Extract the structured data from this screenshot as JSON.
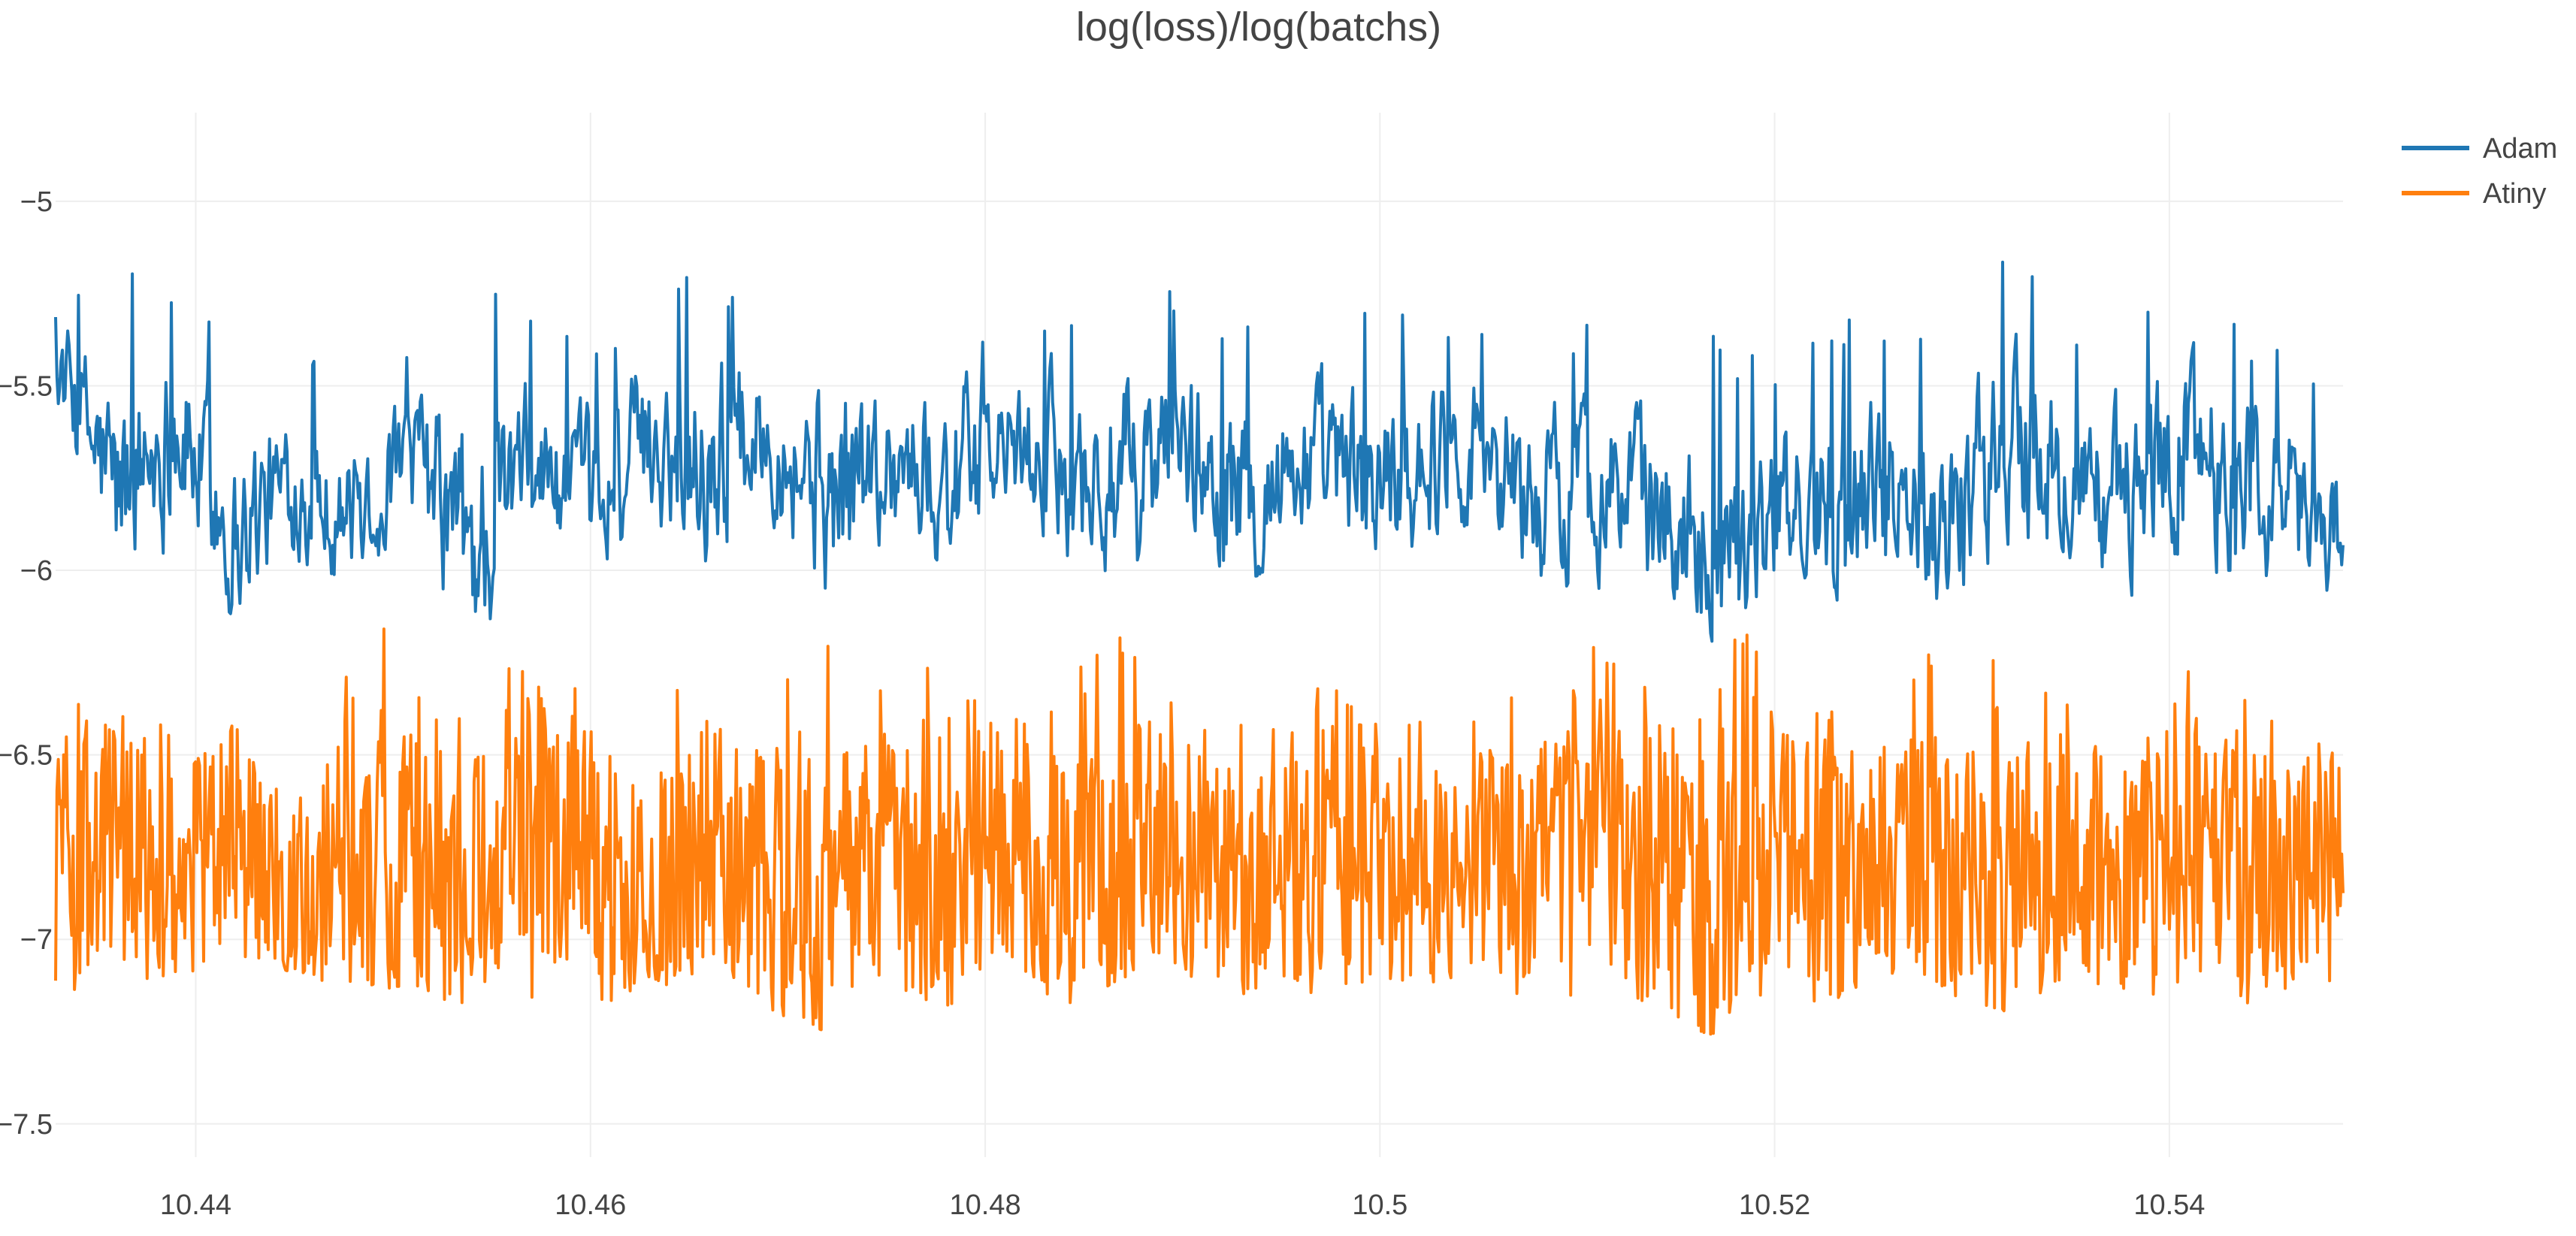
{
  "chart_data": {
    "type": "line",
    "title": "log(loss)/log(batchs)",
    "xlabel": "",
    "ylabel": "",
    "xlim": [
      10.4329,
      10.5488
    ],
    "ylim": [
      -7.59,
      -4.76
    ],
    "x_ticks": [
      10.44,
      10.46,
      10.48,
      10.5,
      10.52,
      10.54
    ],
    "x_tick_labels": [
      "10.44",
      "10.46",
      "10.48",
      "10.5",
      "10.52",
      "10.54"
    ],
    "y_ticks": [
      -5,
      -5.5,
      -6,
      -6.5,
      -7,
      -7.5
    ],
    "y_tick_labels": [
      "−5",
      "−5.5",
      "−6",
      "−6.5",
      "−7",
      "−7.5"
    ],
    "grid": true,
    "legend_position": "top-right",
    "series": [
      {
        "name": "Adam",
        "color": "#1f77b4",
        "x": [
          10.433,
          10.436,
          10.439,
          10.442,
          10.445,
          10.448,
          10.451,
          10.454,
          10.457,
          10.46,
          10.463,
          10.466,
          10.469,
          10.472,
          10.475,
          10.478,
          10.481,
          10.484,
          10.487,
          10.49,
          10.493,
          10.496,
          10.499,
          10.502,
          10.505,
          10.508,
          10.511,
          10.514,
          10.517,
          10.52,
          10.523,
          10.526,
          10.529,
          10.532,
          10.535,
          10.538,
          10.541,
          10.544,
          10.547,
          10.5488
        ],
        "y": [
          -5.45,
          -5.8,
          -5.6,
          -5.9,
          -5.75,
          -5.85,
          -5.7,
          -5.95,
          -5.7,
          -5.85,
          -5.65,
          -5.7,
          -5.6,
          -5.8,
          -5.7,
          -5.75,
          -5.68,
          -5.72,
          -5.8,
          -5.65,
          -5.82,
          -5.7,
          -5.78,
          -5.7,
          -5.65,
          -5.82,
          -5.75,
          -5.85,
          -5.9,
          -5.88,
          -5.8,
          -5.75,
          -5.85,
          -5.65,
          -5.78,
          -5.8,
          -5.65,
          -5.75,
          -5.85,
          -5.9
        ],
        "high": [
          -5.3,
          -5.13,
          -5.23,
          -5.35,
          -5.38,
          -5.45,
          -5.4,
          -5.08,
          -5.3,
          -5.35,
          -5.3,
          -5.13,
          -5.35,
          -5.13,
          -5.38,
          -5.2,
          -5.38,
          -5.3,
          -5.2,
          -5.25,
          -5.3,
          -5.3,
          -5.25,
          -5.3,
          -5.3,
          -5.38,
          -5.3,
          -5.35,
          -5.35,
          -5.45,
          -5.3,
          -5.35,
          -5.35,
          -5.03,
          -5.35,
          -5.4,
          -5.01,
          -5.35,
          -5.42,
          -5.55
        ],
        "low": [
          -5.75,
          -6.1,
          -6.05,
          -6.15,
          -6.0,
          -6.05,
          -6.0,
          -6.22,
          -5.95,
          -6.1,
          -6.0,
          -6.05,
          -5.95,
          -6.15,
          -6.05,
          -6.1,
          -5.95,
          -6.05,
          -6.15,
          -6.0,
          -6.12,
          -6.0,
          -6.1,
          -6.05,
          -5.98,
          -6.15,
          -6.05,
          -6.15,
          -6.2,
          -6.2,
          -6.1,
          -6.08,
          -6.2,
          -6.0,
          -6.1,
          -6.15,
          -6.0,
          -6.12,
          -6.15,
          -6.2
        ]
      },
      {
        "name": "Atiny",
        "color": "#ff7f0e",
        "x": [
          10.433,
          10.436,
          10.439,
          10.442,
          10.445,
          10.448,
          10.451,
          10.454,
          10.457,
          10.46,
          10.463,
          10.466,
          10.469,
          10.472,
          10.475,
          10.478,
          10.481,
          10.484,
          10.487,
          10.49,
          10.493,
          10.496,
          10.499,
          10.502,
          10.505,
          10.508,
          10.511,
          10.514,
          10.517,
          10.52,
          10.523,
          10.526,
          10.529,
          10.532,
          10.535,
          10.538,
          10.541,
          10.544,
          10.547,
          10.5488
        ],
        "y": [
          -6.8,
          -6.75,
          -6.85,
          -6.7,
          -6.9,
          -6.75,
          -6.8,
          -6.85,
          -6.7,
          -6.8,
          -6.9,
          -6.75,
          -6.8,
          -6.85,
          -6.78,
          -6.82,
          -6.75,
          -6.85,
          -6.8,
          -6.78,
          -6.85,
          -6.8,
          -6.75,
          -6.85,
          -6.8,
          -6.78,
          -6.82,
          -6.8,
          -6.85,
          -6.75,
          -6.82,
          -6.8,
          -6.78,
          -6.85,
          -6.8,
          -6.82,
          -6.78,
          -6.85,
          -6.8,
          -6.75
        ],
        "high": [
          -6.2,
          -6.4,
          -6.35,
          -6.4,
          -6.35,
          -6.1,
          -6.1,
          -6.35,
          -6.1,
          -6.3,
          -6.3,
          -6.35,
          -6.3,
          -6.1,
          -6.35,
          -6.1,
          -6.35,
          -6.35,
          -6.0,
          -6.35,
          -6.4,
          -6.35,
          -6.15,
          -6.4,
          -6.3,
          -6.35,
          -6.2,
          -6.25,
          -6.05,
          -6.1,
          -6.3,
          -6.4,
          -6.05,
          -6.2,
          -6.35,
          -6.3,
          -6.2,
          -6.3,
          -6.4,
          -6.4
        ],
        "low": [
          -7.15,
          -7.2,
          -7.1,
          -7.12,
          -7.08,
          -7.15,
          -7.12,
          -7.2,
          -7.18,
          -7.22,
          -7.1,
          -7.18,
          -7.2,
          -7.25,
          -7.15,
          -7.18,
          -7.12,
          -7.2,
          -7.1,
          -7.15,
          -7.18,
          -7.15,
          -7.2,
          -7.12,
          -7.1,
          -7.18,
          -7.15,
          -7.22,
          -7.26,
          -7.15,
          -7.18,
          -7.12,
          -7.15,
          -7.2,
          -7.12,
          -7.18,
          -7.1,
          -7.22,
          -7.15,
          -7.1
        ]
      }
    ]
  }
}
